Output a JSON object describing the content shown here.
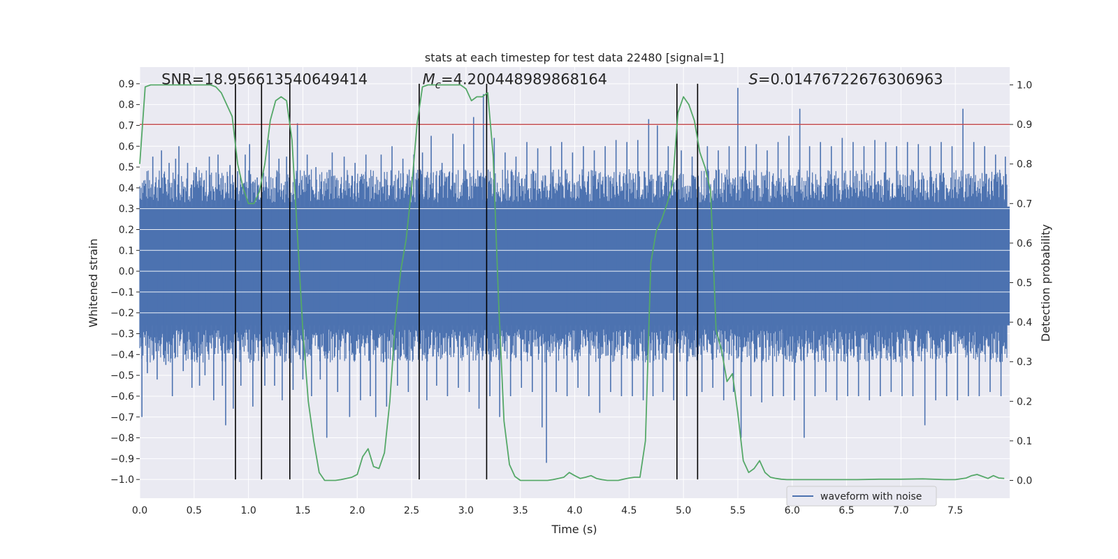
{
  "chart_data": {
    "type": "line",
    "title": "stats at each timestep for test data 22480 [signal=1]",
    "xlabel": "Time (s)",
    "ylabel": "Whitened strain",
    "y2label": "Detection probability",
    "xlim": [
      0.0,
      8.0
    ],
    "ylim": [
      -1.09,
      0.98
    ],
    "y2lim": [
      -0.045,
      1.045
    ],
    "x_ticks": [
      0.0,
      0.5,
      1.0,
      1.5,
      2.0,
      2.5,
      3.0,
      3.5,
      4.0,
      4.5,
      5.0,
      5.5,
      6.0,
      6.5,
      7.0,
      7.5
    ],
    "x_tick_labels": [
      "0.0",
      "0.5",
      "1.0",
      "1.5",
      "2.0",
      "2.5",
      "3.0",
      "3.5",
      "4.0",
      "4.5",
      "5.0",
      "5.5",
      "6.0",
      "6.5",
      "7.0",
      "7.5"
    ],
    "y_ticks": [
      0.9,
      0.8,
      0.7,
      0.6,
      0.5,
      0.4,
      0.3,
      0.2,
      0.1,
      0.0,
      -0.1,
      -0.2,
      -0.3,
      -0.4,
      -0.5,
      -0.6,
      -0.7,
      -0.8,
      -0.9,
      -1.0
    ],
    "y_tick_labels": [
      "0.9",
      "0.8",
      "0.7",
      "0.6",
      "0.5",
      "0.4",
      "0.3",
      "0.2",
      "0.1",
      "0.0",
      "−0.1",
      "−0.2",
      "−0.3",
      "−0.4",
      "−0.5",
      "−0.6",
      "−0.7",
      "−0.8",
      "−0.9",
      "−1.0"
    ],
    "y2_ticks": [
      1.0,
      0.9,
      0.8,
      0.7,
      0.6,
      0.5,
      0.4,
      0.3,
      0.2,
      0.1,
      0.0
    ],
    "y2_tick_labels": [
      "1.0",
      "0.9",
      "0.8",
      "0.7",
      "0.6",
      "0.5",
      "0.4",
      "0.3",
      "0.2",
      "0.1",
      "0.0"
    ],
    "grid": true,
    "legend": {
      "position": "lower-right",
      "entries": [
        {
          "label": "waveform with noise",
          "color": "#4c72b0"
        }
      ]
    },
    "annotations": [
      {
        "text": "SNR=18.956613540649414",
        "x": 0.2,
        "y": 0.925
      },
      {
        "text": "M_c=4.200448989868164",
        "prefix": "M",
        "subscript": "c",
        "rest": "=4.200448989868164",
        "x": 2.6,
        "y": 0.925
      },
      {
        "text": "S=0.01476722676306963",
        "prefix": "S",
        "rest": "=0.01476722676306963",
        "x": 5.6,
        "y": 0.925
      }
    ],
    "threshold": {
      "axis": "y2",
      "value": 0.9,
      "color": "#c44e52"
    },
    "vertical_lines": {
      "color": "#000000",
      "ymin": -1.0,
      "ymax": 0.9,
      "x": [
        0.88,
        1.12,
        1.38,
        2.57,
        3.19,
        4.94,
        5.13
      ]
    },
    "noise_band": {
      "min": -0.26,
      "max": 0.31
    },
    "series": [
      {
        "name": "waveform with noise",
        "axis": "y",
        "color": "#4c72b0",
        "spikes": [
          {
            "x": 0.02,
            "y": -0.7
          },
          {
            "x": 0.07,
            "y": -0.49
          },
          {
            "x": 0.12,
            "y": 0.55
          },
          {
            "x": 0.16,
            "y": -0.52
          },
          {
            "x": 0.2,
            "y": 0.58
          },
          {
            "x": 0.24,
            "y": -0.45
          },
          {
            "x": 0.27,
            "y": 0.52
          },
          {
            "x": 0.3,
            "y": -0.6
          },
          {
            "x": 0.33,
            "y": 0.54
          },
          {
            "x": 0.36,
            "y": 0.6
          },
          {
            "x": 0.4,
            "y": -0.48
          },
          {
            "x": 0.44,
            "y": 0.52
          },
          {
            "x": 0.48,
            "y": -0.56
          },
          {
            "x": 0.52,
            "y": 0.5
          },
          {
            "x": 0.55,
            "y": -0.55
          },
          {
            "x": 0.6,
            "y": -0.5
          },
          {
            "x": 0.64,
            "y": 0.55
          },
          {
            "x": 0.68,
            "y": -0.62
          },
          {
            "x": 0.72,
            "y": 0.56
          },
          {
            "x": 0.76,
            "y": -0.55
          },
          {
            "x": 0.79,
            "y": -0.74
          },
          {
            "x": 0.83,
            "y": 0.51
          },
          {
            "x": 0.86,
            "y": -0.66
          },
          {
            "x": 0.9,
            "y": 0.48
          },
          {
            "x": 0.93,
            "y": -0.55
          },
          {
            "x": 0.97,
            "y": 0.56
          },
          {
            "x": 1.01,
            "y": 0.61
          },
          {
            "x": 1.04,
            "y": -0.65
          },
          {
            "x": 1.08,
            "y": 0.45
          },
          {
            "x": 1.15,
            "y": -0.55
          },
          {
            "x": 1.19,
            "y": 0.63
          },
          {
            "x": 1.24,
            "y": -0.55
          },
          {
            "x": 1.28,
            "y": 0.54
          },
          {
            "x": 1.31,
            "y": -0.62
          },
          {
            "x": 1.35,
            "y": 0.55
          },
          {
            "x": 1.41,
            "y": -0.57
          },
          {
            "x": 1.45,
            "y": 0.71
          },
          {
            "x": 1.5,
            "y": -0.52
          },
          {
            "x": 1.54,
            "y": 0.56
          },
          {
            "x": 1.58,
            "y": -0.6
          },
          {
            "x": 1.62,
            "y": 0.5
          },
          {
            "x": 1.66,
            "y": -0.52
          },
          {
            "x": 1.72,
            "y": -0.8
          },
          {
            "x": 1.77,
            "y": 0.57
          },
          {
            "x": 1.82,
            "y": -0.58
          },
          {
            "x": 1.88,
            "y": 0.55
          },
          {
            "x": 1.93,
            "y": -0.7
          },
          {
            "x": 1.98,
            "y": 0.52
          },
          {
            "x": 2.03,
            "y": -0.62
          },
          {
            "x": 2.08,
            "y": 0.56
          },
          {
            "x": 2.12,
            "y": -0.6
          },
          {
            "x": 2.17,
            "y": -0.7
          },
          {
            "x": 2.22,
            "y": 0.56
          },
          {
            "x": 2.27,
            "y": -0.65
          },
          {
            "x": 2.32,
            "y": 0.6
          },
          {
            "x": 2.37,
            "y": -0.55
          },
          {
            "x": 2.42,
            "y": 0.54
          },
          {
            "x": 2.47,
            "y": -0.58
          },
          {
            "x": 2.52,
            "y": 0.56
          },
          {
            "x": 2.6,
            "y": 0.57
          },
          {
            "x": 2.64,
            "y": -0.62
          },
          {
            "x": 2.68,
            "y": 0.65
          },
          {
            "x": 2.73,
            "y": -0.55
          },
          {
            "x": 2.78,
            "y": 0.52
          },
          {
            "x": 2.83,
            "y": -0.6
          },
          {
            "x": 2.88,
            "y": 0.66
          },
          {
            "x": 2.93,
            "y": -0.56
          },
          {
            "x": 2.98,
            "y": 0.61
          },
          {
            "x": 3.03,
            "y": -0.58
          },
          {
            "x": 3.07,
            "y": 0.74
          },
          {
            "x": 3.12,
            "y": -0.66
          },
          {
            "x": 3.16,
            "y": 0.85
          },
          {
            "x": 3.22,
            "y": -0.6
          },
          {
            "x": 3.26,
            "y": 0.64
          },
          {
            "x": 3.31,
            "y": -0.7
          },
          {
            "x": 3.36,
            "y": 0.57
          },
          {
            "x": 3.41,
            "y": -0.6
          },
          {
            "x": 3.46,
            "y": 0.55
          },
          {
            "x": 3.51,
            "y": -0.56
          },
          {
            "x": 3.56,
            "y": 0.62
          },
          {
            "x": 3.61,
            "y": -0.58
          },
          {
            "x": 3.66,
            "y": 0.59
          },
          {
            "x": 3.7,
            "y": -0.75
          },
          {
            "x": 3.74,
            "y": -0.92
          },
          {
            "x": 3.78,
            "y": 0.6
          },
          {
            "x": 3.83,
            "y": -0.58
          },
          {
            "x": 3.88,
            "y": 0.62
          },
          {
            "x": 3.93,
            "y": -0.6
          },
          {
            "x": 3.98,
            "y": 0.57
          },
          {
            "x": 4.03,
            "y": -0.56
          },
          {
            "x": 4.08,
            "y": 0.6
          },
          {
            "x": 4.13,
            "y": -0.6
          },
          {
            "x": 4.18,
            "y": 0.58
          },
          {
            "x": 4.23,
            "y": -0.68
          },
          {
            "x": 4.28,
            "y": 0.6
          },
          {
            "x": 4.33,
            "y": -0.58
          },
          {
            "x": 4.38,
            "y": 0.63
          },
          {
            "x": 4.43,
            "y": -0.6
          },
          {
            "x": 4.48,
            "y": 0.62
          },
          {
            "x": 4.53,
            "y": -0.6
          },
          {
            "x": 4.58,
            "y": 0.63
          },
          {
            "x": 4.63,
            "y": -0.62
          },
          {
            "x": 4.68,
            "y": 0.73
          },
          {
            "x": 4.72,
            "y": -0.6
          },
          {
            "x": 4.76,
            "y": 0.7
          },
          {
            "x": 4.81,
            "y": -0.58
          },
          {
            "x": 4.86,
            "y": 0.6
          },
          {
            "x": 4.91,
            "y": -0.62
          },
          {
            "x": 4.98,
            "y": 0.58
          },
          {
            "x": 5.03,
            "y": -0.6
          },
          {
            "x": 5.08,
            "y": 0.55
          },
          {
            "x": 5.17,
            "y": -0.58
          },
          {
            "x": 5.22,
            "y": 0.6
          },
          {
            "x": 5.27,
            "y": -0.56
          },
          {
            "x": 5.32,
            "y": 0.58
          },
          {
            "x": 5.37,
            "y": -0.62
          },
          {
            "x": 5.42,
            "y": 0.6
          },
          {
            "x": 5.46,
            "y": -0.58
          },
          {
            "x": 5.5,
            "y": 0.88
          },
          {
            "x": 5.53,
            "y": -0.8
          },
          {
            "x": 5.57,
            "y": 0.6
          },
          {
            "x": 5.62,
            "y": -0.6
          },
          {
            "x": 5.67,
            "y": 0.61
          },
          {
            "x": 5.72,
            "y": -0.63
          },
          {
            "x": 5.77,
            "y": 0.58
          },
          {
            "x": 5.82,
            "y": -0.6
          },
          {
            "x": 5.87,
            "y": 0.62
          },
          {
            "x": 5.92,
            "y": -0.6
          },
          {
            "x": 5.97,
            "y": 0.65
          },
          {
            "x": 6.02,
            "y": -0.62
          },
          {
            "x": 6.07,
            "y": 0.78
          },
          {
            "x": 6.11,
            "y": -0.8
          },
          {
            "x": 6.16,
            "y": 0.6
          },
          {
            "x": 6.21,
            "y": -0.6
          },
          {
            "x": 6.26,
            "y": 0.62
          },
          {
            "x": 6.31,
            "y": -0.58
          },
          {
            "x": 6.36,
            "y": 0.6
          },
          {
            "x": 6.41,
            "y": -0.62
          },
          {
            "x": 6.46,
            "y": 0.64
          },
          {
            "x": 6.51,
            "y": -0.6
          },
          {
            "x": 6.56,
            "y": 0.62
          },
          {
            "x": 6.61,
            "y": -0.6
          },
          {
            "x": 6.66,
            "y": 0.6
          },
          {
            "x": 6.71,
            "y": -0.62
          },
          {
            "x": 6.76,
            "y": 0.63
          },
          {
            "x": 6.81,
            "y": -0.6
          },
          {
            "x": 6.86,
            "y": 0.62
          },
          {
            "x": 6.91,
            "y": -0.58
          },
          {
            "x": 6.96,
            "y": 0.6
          },
          {
            "x": 7.01,
            "y": -0.6
          },
          {
            "x": 7.06,
            "y": 0.62
          },
          {
            "x": 7.11,
            "y": -0.6
          },
          {
            "x": 7.16,
            "y": 0.61
          },
          {
            "x": 7.22,
            "y": -0.74
          },
          {
            "x": 7.27,
            "y": 0.6
          },
          {
            "x": 7.32,
            "y": -0.62
          },
          {
            "x": 7.37,
            "y": 0.62
          },
          {
            "x": 7.42,
            "y": -0.6
          },
          {
            "x": 7.47,
            "y": 0.6
          },
          {
            "x": 7.52,
            "y": -0.62
          },
          {
            "x": 7.57,
            "y": 0.78
          },
          {
            "x": 7.62,
            "y": -0.6
          },
          {
            "x": 7.67,
            "y": 0.62
          },
          {
            "x": 7.72,
            "y": -0.6
          },
          {
            "x": 7.77,
            "y": 0.6
          },
          {
            "x": 7.82,
            "y": -0.58
          },
          {
            "x": 7.87,
            "y": 0.56
          },
          {
            "x": 7.92,
            "y": -0.6
          },
          {
            "x": 7.96,
            "y": 0.55
          }
        ]
      },
      {
        "name": "detection probability",
        "axis": "y2",
        "color": "#55a868",
        "x": [
          0.0,
          0.05,
          0.1,
          0.15,
          0.2,
          0.3,
          0.4,
          0.5,
          0.6,
          0.65,
          0.7,
          0.75,
          0.8,
          0.85,
          0.9,
          0.95,
          1.0,
          1.05,
          1.1,
          1.15,
          1.2,
          1.25,
          1.3,
          1.35,
          1.4,
          1.45,
          1.5,
          1.55,
          1.6,
          1.65,
          1.7,
          1.75,
          1.8,
          1.85,
          1.9,
          1.95,
          2.0,
          2.05,
          2.1,
          2.15,
          2.2,
          2.25,
          2.3,
          2.35,
          2.4,
          2.45,
          2.5,
          2.55,
          2.6,
          2.65,
          2.7,
          2.75,
          2.8,
          2.85,
          2.9,
          2.95,
          3.0,
          3.05,
          3.1,
          3.15,
          3.2,
          3.25,
          3.3,
          3.35,
          3.4,
          3.45,
          3.5,
          3.55,
          3.6,
          3.65,
          3.7,
          3.75,
          3.8,
          3.85,
          3.9,
          3.95,
          4.0,
          4.05,
          4.1,
          4.15,
          4.2,
          4.25,
          4.3,
          4.35,
          4.4,
          4.45,
          4.5,
          4.55,
          4.6,
          4.65,
          4.7,
          4.75,
          4.8,
          4.85,
          4.9,
          4.95,
          5.0,
          5.05,
          5.1,
          5.15,
          5.2,
          5.25,
          5.3,
          5.35,
          5.4,
          5.45,
          5.5,
          5.55,
          5.6,
          5.65,
          5.7,
          5.75,
          5.8,
          5.85,
          5.9,
          5.95,
          6.0,
          6.2,
          6.4,
          6.6,
          6.8,
          7.0,
          7.2,
          7.4,
          7.5,
          7.6,
          7.65,
          7.7,
          7.8,
          7.85,
          7.9,
          7.95
        ],
        "y": [
          0.8,
          0.995,
          1.0,
          1.0,
          1.0,
          1.0,
          1.0,
          1.0,
          1.0,
          1.0,
          0.995,
          0.98,
          0.95,
          0.92,
          0.8,
          0.74,
          0.7,
          0.7,
          0.73,
          0.8,
          0.91,
          0.96,
          0.97,
          0.96,
          0.86,
          0.62,
          0.38,
          0.2,
          0.1,
          0.02,
          0.0,
          0.0,
          0.0,
          0.002,
          0.005,
          0.008,
          0.015,
          0.06,
          0.08,
          0.035,
          0.03,
          0.07,
          0.2,
          0.4,
          0.53,
          0.61,
          0.74,
          0.9,
          0.995,
          1.0,
          1.0,
          1.0,
          1.0,
          1.0,
          1.0,
          1.0,
          0.99,
          0.96,
          0.97,
          0.97,
          0.98,
          0.82,
          0.45,
          0.15,
          0.04,
          0.01,
          0.0,
          0.0,
          0.0,
          0.0,
          0.0,
          0.0,
          0.002,
          0.005,
          0.008,
          0.02,
          0.012,
          0.005,
          0.008,
          0.012,
          0.005,
          0.002,
          0.0,
          0.0,
          0.0,
          0.003,
          0.006,
          0.008,
          0.008,
          0.1,
          0.55,
          0.63,
          0.66,
          0.7,
          0.75,
          0.93,
          0.97,
          0.95,
          0.91,
          0.83,
          0.79,
          0.73,
          0.38,
          0.33,
          0.25,
          0.27,
          0.17,
          0.05,
          0.02,
          0.03,
          0.05,
          0.02,
          0.008,
          0.005,
          0.003,
          0.002,
          0.002,
          0.002,
          0.002,
          0.002,
          0.003,
          0.003,
          0.004,
          0.002,
          0.002,
          0.006,
          0.012,
          0.015,
          0.005,
          0.012,
          0.006,
          0.005
        ],
        "visible_in_legend": false
      }
    ]
  },
  "colors": {
    "figure_bg": "#ffffff",
    "plot_bg": "#eaeaf2",
    "grid": "#ffffff",
    "waveform": "#4c72b0",
    "probability": "#55a868",
    "threshold": "#c44e52",
    "vlines": "#000000",
    "text": "#262626"
  }
}
